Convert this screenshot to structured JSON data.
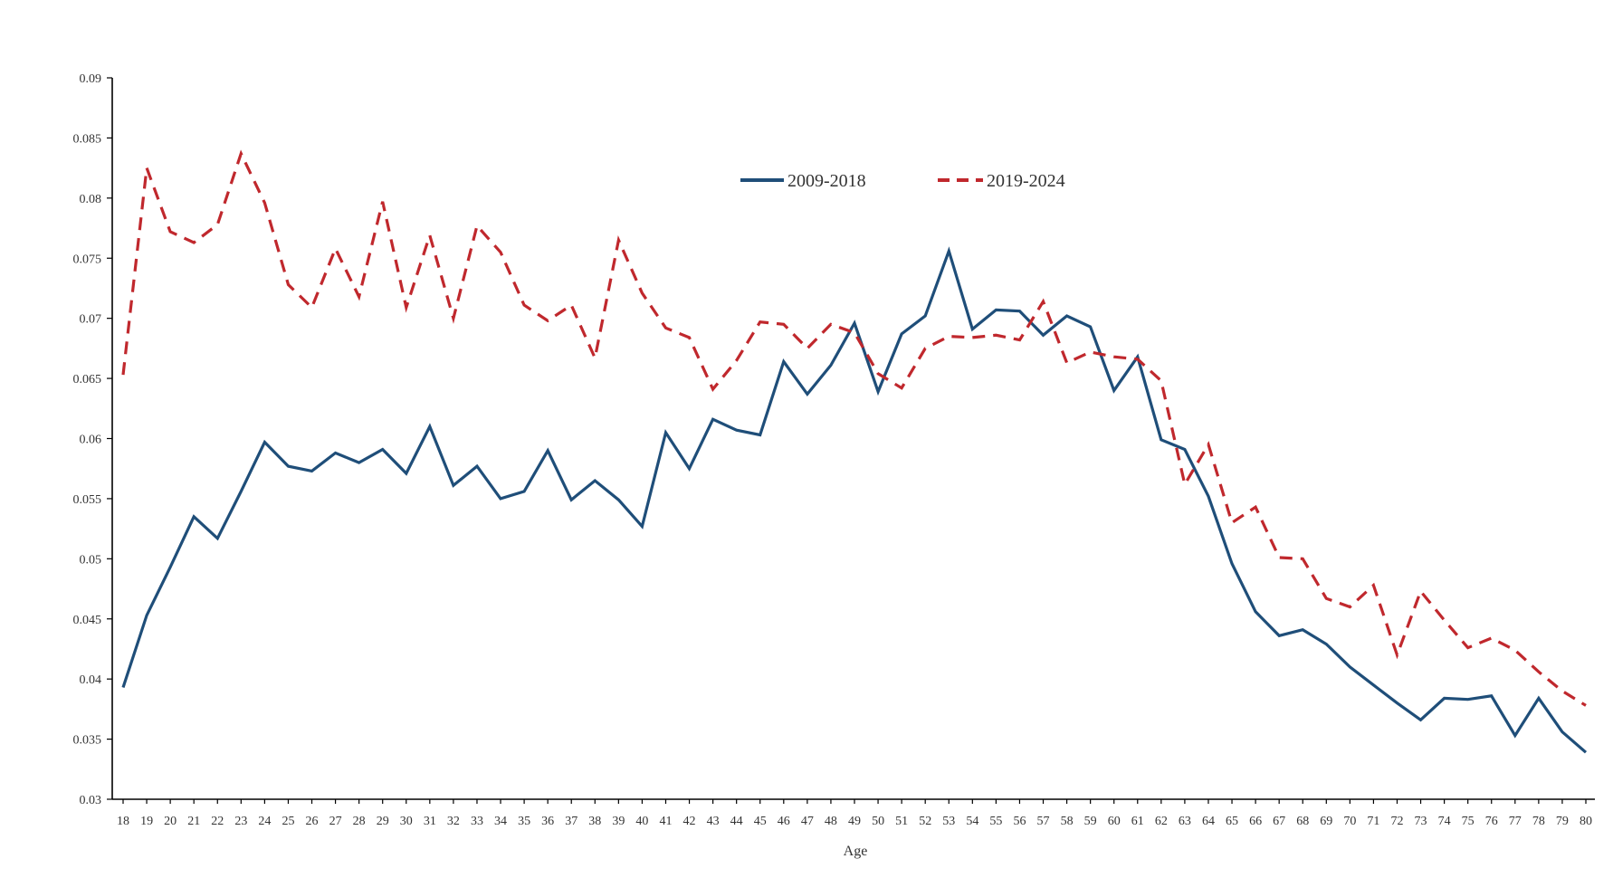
{
  "chart_data": {
    "type": "line",
    "title": "",
    "xlabel": "Age",
    "ylabel": "",
    "ylim": [
      0.03,
      0.09
    ],
    "yticks": [
      "0.03",
      "0.035",
      "0.04",
      "0.045",
      "0.05",
      "0.055",
      "0.06",
      "0.065",
      "0.07",
      "0.075",
      "0.08",
      "0.085",
      "0.09"
    ],
    "grid": false,
    "legend_position": "top-center",
    "x": [
      18,
      19,
      20,
      21,
      22,
      23,
      24,
      25,
      26,
      27,
      28,
      29,
      30,
      31,
      32,
      33,
      34,
      35,
      36,
      37,
      38,
      39,
      40,
      41,
      42,
      43,
      44,
      45,
      46,
      47,
      48,
      49,
      50,
      51,
      52,
      53,
      54,
      55,
      56,
      57,
      58,
      59,
      60,
      61,
      62,
      63,
      64,
      65,
      66,
      67,
      68,
      69,
      70,
      71,
      72,
      73,
      74,
      75,
      76,
      77,
      78,
      79,
      80
    ],
    "series": [
      {
        "name": "2009-2018",
        "color": "#1f4e79",
        "style": "solid",
        "values": [
          0.0393,
          0.0453,
          0.0493,
          0.0535,
          0.0517,
          0.0556,
          0.0597,
          0.0577,
          0.0573,
          0.0588,
          0.058,
          0.0591,
          0.0571,
          0.061,
          0.0561,
          0.0577,
          0.055,
          0.0556,
          0.059,
          0.0549,
          0.0565,
          0.0549,
          0.0527,
          0.0605,
          0.0575,
          0.0616,
          0.0607,
          0.0603,
          0.0664,
          0.0637,
          0.0661,
          0.0696,
          0.0639,
          0.0687,
          0.0702,
          0.0756,
          0.0691,
          0.0707,
          0.0706,
          0.0686,
          0.0702,
          0.0693,
          0.064,
          0.0668,
          0.0599,
          0.0591,
          0.0552,
          0.0496,
          0.0456,
          0.0436,
          0.0441,
          0.0429,
          0.041,
          0.0395,
          0.038,
          0.0366,
          0.0384,
          0.0383,
          0.0386,
          0.0353,
          0.0384,
          0.0356,
          0.0339
        ]
      },
      {
        "name": "2019-2024",
        "color": "#c0282d",
        "style": "dashed",
        "values": [
          0.0653,
          0.0825,
          0.0772,
          0.0763,
          0.0778,
          0.0837,
          0.0796,
          0.0728,
          0.0709,
          0.0758,
          0.0718,
          0.0797,
          0.0709,
          0.0769,
          0.07,
          0.0777,
          0.0755,
          0.0711,
          0.0698,
          0.0711,
          0.0667,
          0.0765,
          0.0721,
          0.0692,
          0.0684,
          0.0641,
          0.0665,
          0.0697,
          0.0695,
          0.0675,
          0.0695,
          0.0688,
          0.0654,
          0.0642,
          0.0675,
          0.0685,
          0.0684,
          0.0686,
          0.0682,
          0.0714,
          0.0663,
          0.0672,
          0.0668,
          0.0666,
          0.0648,
          0.0562,
          0.0595,
          0.053,
          0.0543,
          0.0501,
          0.05,
          0.0467,
          0.046,
          0.0478,
          0.042,
          0.0473,
          0.0449,
          0.0426,
          0.0434,
          0.0424,
          0.0406,
          0.039,
          0.0378
        ]
      }
    ]
  }
}
